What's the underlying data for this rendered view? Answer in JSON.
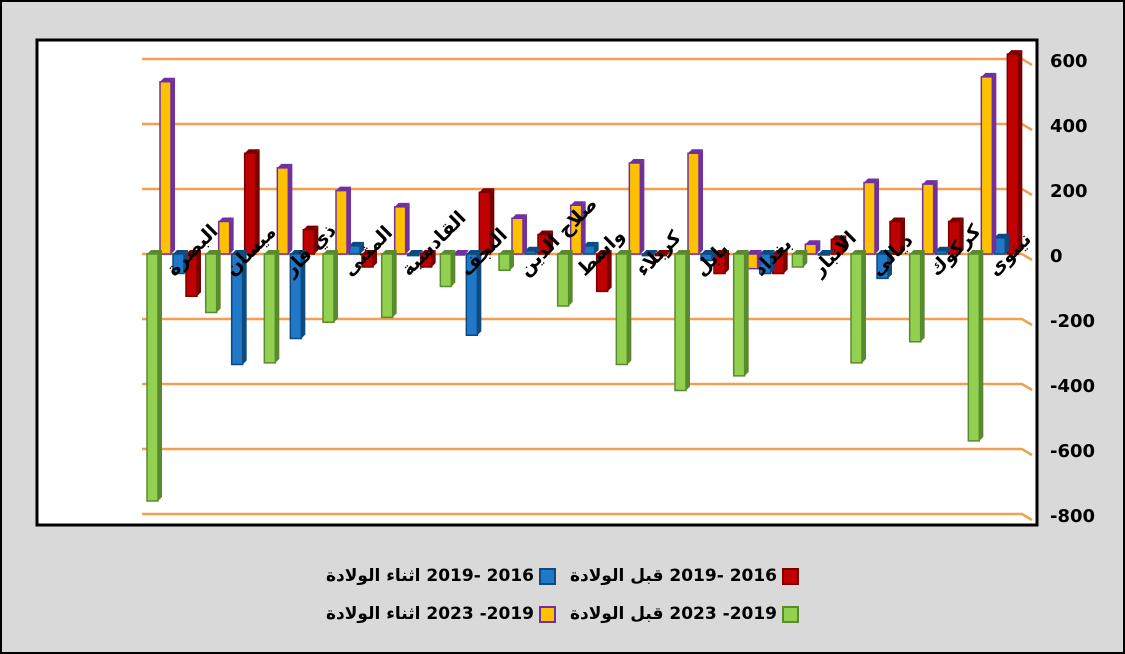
{
  "chart_data": {
    "type": "bar",
    "categories": [
      "البصرة",
      "ميسان",
      "ذي قار",
      "المثنى",
      "القادسية",
      "النجف",
      "صلاح الدين",
      "واسط",
      "كربلاء",
      "بابل",
      "بغداد",
      "الانبار",
      "ديالى",
      "كركوك",
      "نينوى"
    ],
    "series": [
      {
        "name": "2016 -2019 قبل الولادة",
        "color": "#c00000",
        "values": [
          -130,
          310,
          75,
          -40,
          -40,
          190,
          60,
          -115,
          -5,
          -60,
          -60,
          45,
          100,
          100,
          615
        ]
      },
      {
        "name": "2016 -2019 اثناء الولادة",
        "color": "#1f78c8",
        "values": [
          -60,
          -340,
          -260,
          25,
          -5,
          -250,
          10,
          25,
          -5,
          -20,
          -60,
          0,
          -75,
          10,
          50
        ]
      },
      {
        "name": "2019- 2023 اثناء الولادة",
        "color": "#ffc000",
        "values": [
          530,
          100,
          265,
          195,
          145,
          0,
          110,
          150,
          280,
          310,
          -45,
          30,
          220,
          215,
          545
        ]
      },
      {
        "name": "2019- 2023 قبل الولادة",
        "color": "#92d050",
        "values": [
          -760,
          -180,
          -335,
          -210,
          -195,
          -100,
          -50,
          -160,
          -340,
          -420,
          -375,
          -40,
          -335,
          -270,
          -575
        ]
      }
    ],
    "ylim": [
      -800,
      600
    ],
    "yticks": [
      -800,
      -600,
      -400,
      -200,
      0,
      200,
      400,
      600
    ],
    "grid": true
  }
}
